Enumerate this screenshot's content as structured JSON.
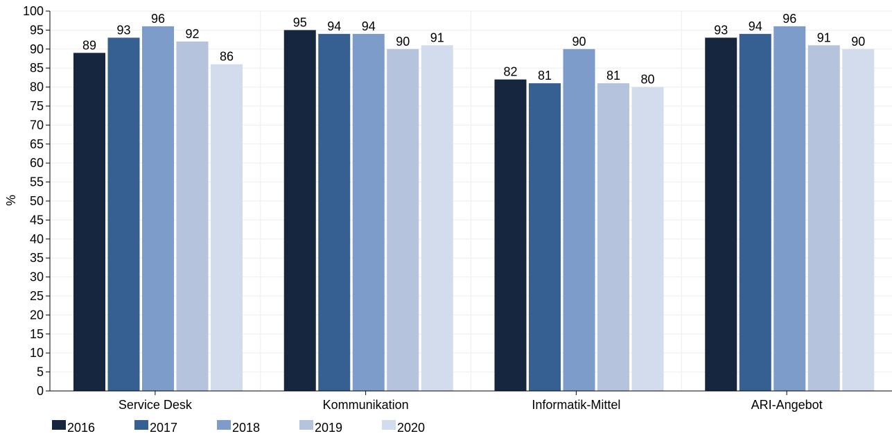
{
  "chart_data": {
    "type": "bar",
    "title": "",
    "xlabel": "",
    "ylabel": "%",
    "ylim": [
      0,
      100
    ],
    "yticks": [
      0,
      5,
      10,
      15,
      20,
      25,
      30,
      35,
      40,
      45,
      50,
      55,
      60,
      65,
      70,
      75,
      80,
      85,
      90,
      95,
      100
    ],
    "grid": true,
    "legend_position": "bottom-left",
    "categories": [
      "Service Desk",
      "Kommunikation",
      "Informatik-Mittel",
      "ARI-Angebot"
    ],
    "series": [
      {
        "name": "2016",
        "color": "#16263f",
        "values": [
          89,
          95,
          82,
          93
        ]
      },
      {
        "name": "2017",
        "color": "#365f92",
        "values": [
          93,
          94,
          81,
          94
        ]
      },
      {
        "name": "2018",
        "color": "#7d9cc9",
        "values": [
          96,
          94,
          90,
          96
        ]
      },
      {
        "name": "2019",
        "color": "#b6c3dc",
        "values": [
          92,
          90,
          81,
          91
        ]
      },
      {
        "name": "2020",
        "color": "#d3dcec",
        "values": [
          86,
          91,
          80,
          90
        ]
      }
    ]
  }
}
